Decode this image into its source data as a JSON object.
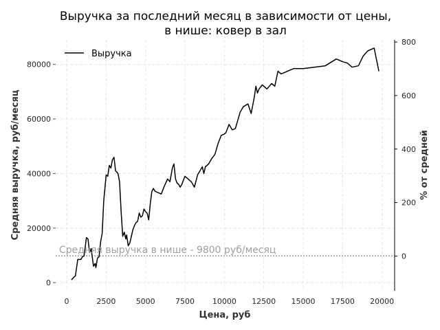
{
  "chart_data": {
    "type": "line",
    "title_line1": "Выручка за последний месяц в зависимости от цены,",
    "title_line2": "в нише: ковер в зал",
    "xlabel": "Цена, руб",
    "ylabel": "Средняя выручка, руб/месяц",
    "y2label": "% от средней",
    "xlim": [
      -700,
      20800
    ],
    "ylim": [
      -3000,
      89000
    ],
    "y2lim": [
      -130,
      808
    ],
    "x_ticks": [
      0,
      2500,
      5000,
      7500,
      10000,
      12500,
      15000,
      17500,
      20000
    ],
    "x_tick_labels": [
      "0",
      "2500",
      "5000",
      "7500",
      "10000",
      "12500",
      "15000",
      "17500",
      "20000"
    ],
    "y_ticks": [
      0,
      20000,
      40000,
      60000,
      80000
    ],
    "y_tick_labels": [
      "0",
      "20000",
      "40000",
      "60000",
      "80000"
    ],
    "y2_ticks": [
      0,
      200,
      400,
      600,
      800
    ],
    "y2_tick_labels": [
      "0",
      "200",
      "400",
      "600",
      "800"
    ],
    "grid": true,
    "legend": {
      "position": "top-left",
      "entries": [
        "Выручка"
      ]
    },
    "reference_line": {
      "y": 9800,
      "label": "Средняя выручка в нише - 9800 руб/месяц"
    },
    "series": [
      {
        "name": "Выручка",
        "color": "#000000",
        "x": [
          300,
          450,
          550,
          700,
          900,
          1000,
          1100,
          1250,
          1350,
          1450,
          1550,
          1700,
          1800,
          1850,
          1950,
          2050,
          2150,
          2250,
          2350,
          2500,
          2600,
          2700,
          2800,
          2900,
          3000,
          3100,
          3250,
          3350,
          3450,
          3550,
          3650,
          3750,
          3800,
          3900,
          4000,
          4100,
          4200,
          4300,
          4400,
          4500,
          4600,
          4700,
          4800,
          4900,
          5000,
          5100,
          5200,
          5300,
          5400,
          5500,
          5600,
          5800,
          6000,
          6200,
          6400,
          6550,
          6700,
          6800,
          6900,
          7000,
          7100,
          7200,
          7300,
          7500,
          7700,
          7900,
          8100,
          8300,
          8500,
          8600,
          8700,
          8800,
          8900,
          9000,
          9200,
          9400,
          9600,
          9800,
          10000,
          10100,
          10300,
          10500,
          10700,
          11000,
          11200,
          11500,
          11700,
          11900,
          12000,
          12100,
          12200,
          12400,
          12700,
          13000,
          13200,
          13400,
          13600,
          13800,
          14400,
          15000,
          15700,
          16400,
          17100,
          17500,
          17800,
          18100,
          18500,
          18800,
          19100,
          19500,
          19800
        ],
        "values": [
          1000,
          2000,
          2500,
          8500,
          8500,
          9500,
          9800,
          16500,
          16000,
          11000,
          12500,
          6000,
          7000,
          5500,
          9000,
          9500,
          15000,
          18000,
          30000,
          39500,
          39000,
          43000,
          42000,
          45000,
          46000,
          41000,
          40000,
          37000,
          26000,
          17000,
          18500,
          16000,
          17500,
          13500,
          14500,
          17000,
          19500,
          21000,
          22000,
          22500,
          25500,
          24000,
          24500,
          27000,
          26000,
          25500,
          23000,
          29000,
          33500,
          34500,
          33500,
          33000,
          32500,
          35500,
          38000,
          37000,
          42000,
          43500,
          38000,
          36500,
          36000,
          35000,
          36000,
          39000,
          38000,
          37000,
          35000,
          39500,
          41500,
          42500,
          40000,
          42500,
          43000,
          43500,
          45500,
          47000,
          51000,
          54000,
          54500,
          55000,
          58000,
          56000,
          56500,
          62500,
          64500,
          65500,
          62000,
          68000,
          72000,
          69500,
          71000,
          72500,
          71000,
          73000,
          72000,
          77500,
          76500,
          77000,
          78500,
          78500,
          79000,
          79500,
          82000,
          81000,
          80500,
          79000,
          79500,
          83000,
          85000,
          86000,
          77500
        ]
      }
    ]
  }
}
